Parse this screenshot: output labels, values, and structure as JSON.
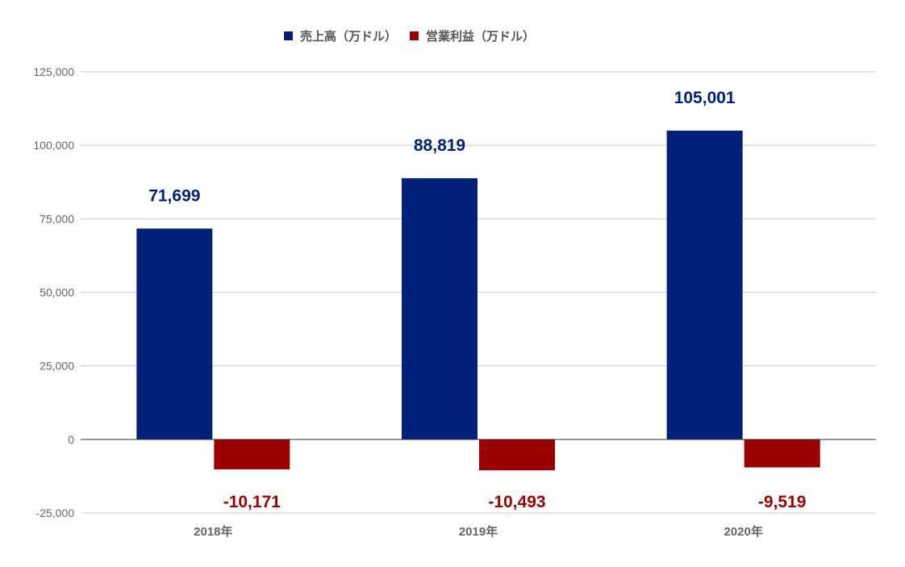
{
  "chart_data": {
    "type": "bar",
    "categories": [
      "2018年",
      "2019年",
      "2020年"
    ],
    "series": [
      {
        "name": "売上高（万ドル）",
        "values": [
          71699,
          88819,
          105001
        ],
        "color": "#00207a"
      },
      {
        "name": "営業利益（万ドル）",
        "values": [
          -10171,
          -10493,
          -9519
        ],
        "color": "#9b0000"
      }
    ],
    "data_labels": [
      [
        "71,699",
        "88,819",
        "105,001"
      ],
      [
        "-10,171",
        "-10,493",
        "-9,519"
      ]
    ],
    "y_ticks": [
      "125,000",
      "100,000",
      "75,000",
      "50,000",
      "25,000",
      "0",
      "-25,000"
    ],
    "y_tick_values": [
      125000,
      100000,
      75000,
      50000,
      25000,
      0,
      -25000
    ],
    "ylim": [
      -25000,
      125000
    ],
    "grid": true,
    "legend_position": "top-center",
    "title": "",
    "xlabel": "",
    "ylabel": ""
  }
}
